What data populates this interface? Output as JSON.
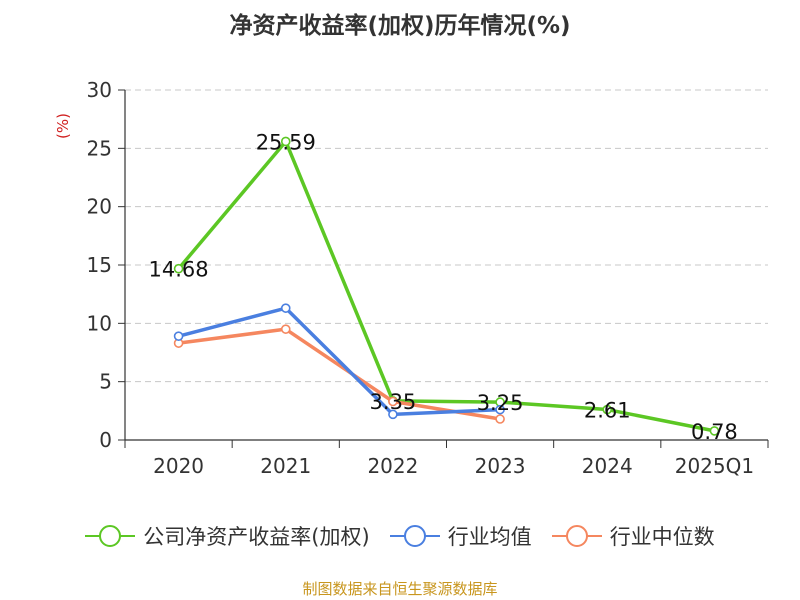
{
  "title": "净资产收益率(加权)历年情况(%)",
  "source": "制图数据来自恒生聚源数据库",
  "colors": {
    "company": "#5cc724",
    "avg": "#4a7fe0",
    "median": "#f5875f",
    "ylabel": "#d02020"
  },
  "chart_data": {
    "type": "line",
    "title": "净资产收益率(加权)历年情况(%)",
    "ylabel": "(%)",
    "xlabel": "",
    "ylim": [
      0,
      30
    ],
    "yticks": [
      "0",
      "5",
      "10",
      "15",
      "20",
      "25",
      "30"
    ],
    "categories": [
      "2020",
      "2021",
      "2022",
      "2023",
      "2024",
      "2025Q1"
    ],
    "grid": true,
    "legend_position": "bottom",
    "series": [
      {
        "name": "公司净资产收益率(加权)",
        "color": "#5cc724",
        "values": [
          14.68,
          25.59,
          3.35,
          3.25,
          2.61,
          0.78
        ],
        "labels": [
          "14.68",
          "25.59",
          "3.35",
          "3.25",
          "2.61",
          "0.78"
        ]
      },
      {
        "name": "行业均值",
        "color": "#4a7fe0",
        "values": [
          8.9,
          11.3,
          2.2,
          2.6,
          null,
          null
        ]
      },
      {
        "name": "行业中位数",
        "color": "#f5875f",
        "values": [
          8.3,
          9.5,
          3.3,
          1.8,
          null,
          null
        ]
      }
    ]
  }
}
